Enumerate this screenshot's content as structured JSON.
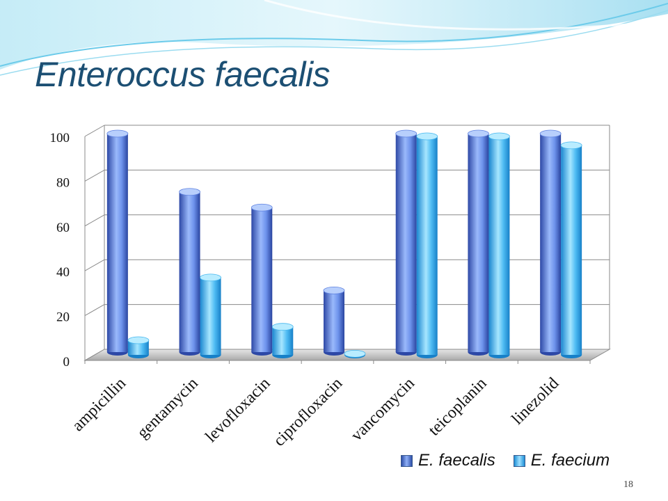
{
  "slide": {
    "title": "Enteroccus faecalis",
    "page_number": "18"
  },
  "colors": {
    "title": "#1c4f73",
    "series_faecalis": "#5b7fe8",
    "series_faecium": "#3aaef0",
    "decoration": "#7fd3ef"
  },
  "legend": {
    "items": [
      {
        "label": "E. faecalis",
        "icon": "series-1-swatch"
      },
      {
        "label": "E. faecium",
        "icon": "series-2-swatch"
      }
    ]
  },
  "chart_data": {
    "type": "bar",
    "style": "3d-cylinder",
    "categories": [
      "ampicillin",
      "gentamycin",
      "levofloxacin",
      "ciprofloxacin",
      "vancomycin",
      "teicoplanin",
      "linezolid"
    ],
    "series": [
      {
        "name": "E. faecalis",
        "values": [
          100,
          74,
          67,
          30,
          100,
          100,
          100
        ]
      },
      {
        "name": "E. faecium",
        "values": [
          9,
          37,
          15,
          3,
          100,
          100,
          96
        ]
      }
    ],
    "yticks": [
      "0",
      "20",
      "40",
      "60",
      "80",
      "100"
    ],
    "ylim": [
      0,
      100
    ],
    "grid": true,
    "legend_position": "bottom-right"
  }
}
